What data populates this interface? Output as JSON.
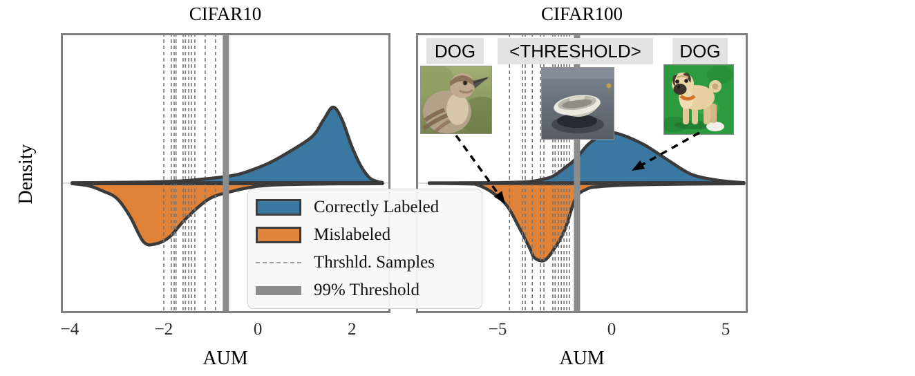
{
  "figure": {
    "ylabel": "Density",
    "xlabel": "AUM"
  },
  "colors": {
    "correct": "#3a78a2",
    "mislabeled": "#e08238",
    "curve_stroke": "#3b3b3b",
    "plot_border": "#7f7f7f",
    "threshold_bar": "#8c8c8c",
    "threshold_dash": "#757575",
    "zero_line": "#dcdcdc",
    "legend_bg": "#f8f8f8",
    "anno_label_bg": "#e3e3e3",
    "text": "#111111"
  },
  "legend": {
    "position": "bottom-center, spanning both plots",
    "items": [
      {
        "label": "Correctly Labeled",
        "swatch": "blue-patch"
      },
      {
        "label": "Mislabeled",
        "swatch": "orange-patch"
      },
      {
        "label": "Thrshld. Samples",
        "swatch": "dashed-gray-line"
      },
      {
        "label": "99% Threshold",
        "swatch": "thick-gray-line"
      }
    ]
  },
  "chart_data": [
    {
      "type": "area",
      "title": "CIFAR10",
      "xlabel": "AUM",
      "ylabel": "Density",
      "xlim": [
        -4.19,
        2.82
      ],
      "ylim": [
        -1.0,
        1.15
      ],
      "xticks": [
        -4,
        -2,
        0,
        2
      ],
      "xtick_labels": [
        "−4",
        "−2",
        "0",
        "2"
      ],
      "grid": "zero-line only",
      "series": [
        {
          "name": "Correctly Labeled",
          "color_key": "correct",
          "points": [
            [
              -3.95,
              0.003
            ],
            [
              -3.5,
              0.004
            ],
            [
              -3.0,
              0.006
            ],
            [
              -2.5,
              0.008
            ],
            [
              -2.0,
              0.012
            ],
            [
              -1.5,
              0.02
            ],
            [
              -1.0,
              0.037
            ],
            [
              -0.6,
              0.055
            ],
            [
              -0.3,
              0.08
            ],
            [
              0.2,
              0.149
            ],
            [
              0.66,
              0.24
            ],
            [
              1.16,
              0.36
            ],
            [
              1.4,
              0.49
            ],
            [
              1.6,
              0.585
            ],
            [
              1.79,
              0.49
            ],
            [
              1.99,
              0.29
            ],
            [
              2.19,
              0.133
            ],
            [
              2.38,
              0.04
            ],
            [
              2.55,
              0.012
            ],
            [
              2.65,
              0.005
            ]
          ]
        },
        {
          "name": "Mislabeled",
          "color_key": "mislabeled",
          "points": [
            [
              -3.95,
              -0.004
            ],
            [
              -3.6,
              -0.02
            ],
            [
              -3.3,
              -0.06
            ],
            [
              -3.0,
              -0.117
            ],
            [
              -2.72,
              -0.255
            ],
            [
              -2.43,
              -0.452
            ],
            [
              -2.18,
              -0.468
            ],
            [
              -1.88,
              -0.415
            ],
            [
              -1.54,
              -0.277
            ],
            [
              -1.04,
              -0.122
            ],
            [
              -0.56,
              -0.064
            ],
            [
              -0.07,
              -0.027
            ],
            [
              0.43,
              -0.013
            ],
            [
              1.0,
              -0.008
            ],
            [
              1.8,
              -0.005
            ],
            [
              2.65,
              -0.004
            ]
          ]
        }
      ],
      "threshold_samples": [
        -2.0,
        -1.84,
        -1.78,
        -1.74,
        -1.59,
        -1.54,
        -1.47,
        -1.41,
        -1.34,
        -1.12,
        -0.9
      ],
      "threshold_99": -0.68
    },
    {
      "type": "area",
      "title": "CIFAR100",
      "xlabel": "AUM",
      "ylabel": "Density",
      "xlim": [
        -8.58,
        5.97
      ],
      "ylim": [
        -1.0,
        1.15
      ],
      "xticks": [
        -5,
        0,
        5
      ],
      "xtick_labels": [
        "−5",
        "0",
        "5"
      ],
      "grid": "zero-line only",
      "series": [
        {
          "name": "Correctly Labeled",
          "color_key": "correct",
          "points": [
            [
              -8.0,
              0.002
            ],
            [
              -7.0,
              0.002
            ],
            [
              -6.0,
              0.003
            ],
            [
              -5.0,
              0.004
            ],
            [
              -4.0,
              0.008
            ],
            [
              -3.58,
              0.012
            ],
            [
              -3.09,
              0.027
            ],
            [
              -2.58,
              0.053
            ],
            [
              -2.06,
              0.117
            ],
            [
              -1.58,
              0.186
            ],
            [
              -1.06,
              0.293
            ],
            [
              -0.55,
              0.362
            ],
            [
              -0.24,
              0.394
            ],
            [
              0.45,
              0.372
            ],
            [
              1.45,
              0.293
            ],
            [
              2.48,
              0.176
            ],
            [
              3.48,
              0.069
            ],
            [
              4.48,
              0.027
            ],
            [
              5.3,
              0.01
            ],
            [
              5.8,
              0.004
            ]
          ]
        },
        {
          "name": "Mislabeled",
          "color_key": "mislabeled",
          "points": [
            [
              -8.0,
              -0.002
            ],
            [
              -7.0,
              -0.003
            ],
            [
              -6.2,
              -0.006
            ],
            [
              -5.91,
              -0.011
            ],
            [
              -5.3,
              -0.064
            ],
            [
              -4.61,
              -0.17
            ],
            [
              -4.09,
              -0.33
            ],
            [
              -3.58,
              -0.505
            ],
            [
              -3.39,
              -0.574
            ],
            [
              -2.97,
              -0.596
            ],
            [
              -2.58,
              -0.521
            ],
            [
              -2.06,
              -0.362
            ],
            [
              -1.58,
              -0.117
            ],
            [
              -1.06,
              -0.043
            ],
            [
              -0.55,
              -0.027
            ],
            [
              0.5,
              -0.016
            ],
            [
              2.0,
              -0.01
            ],
            [
              4.0,
              -0.006
            ],
            [
              5.8,
              -0.004
            ]
          ]
        }
      ],
      "threshold_samples": [
        -4.48,
        -3.91,
        -3.79,
        -3.48,
        -3.12,
        -2.97,
        -2.58,
        -2.48,
        -2.33,
        -2.21,
        -2.09,
        -1.97,
        -1.85
      ],
      "threshold_99": -1.52,
      "annotations": {
        "labels": [
          {
            "text": "DOG",
            "over": "bird-image"
          },
          {
            "text": "<THRESHOLD>",
            "over": "boat-image"
          },
          {
            "text": "DOG",
            "over": "pug-image"
          }
        ],
        "images": [
          {
            "name": "bird-image",
            "desc": "sparrow photo thumbnail"
          },
          {
            "name": "boat-image",
            "desc": "rowboat photo thumbnail"
          },
          {
            "name": "pug-image",
            "desc": "pug dog photo thumbnail"
          }
        ],
        "arrows": [
          {
            "from": "bird-image",
            "to": "mislabeled density"
          },
          {
            "from": "pug-image",
            "to": "correctly labeled density"
          }
        ]
      }
    }
  ]
}
